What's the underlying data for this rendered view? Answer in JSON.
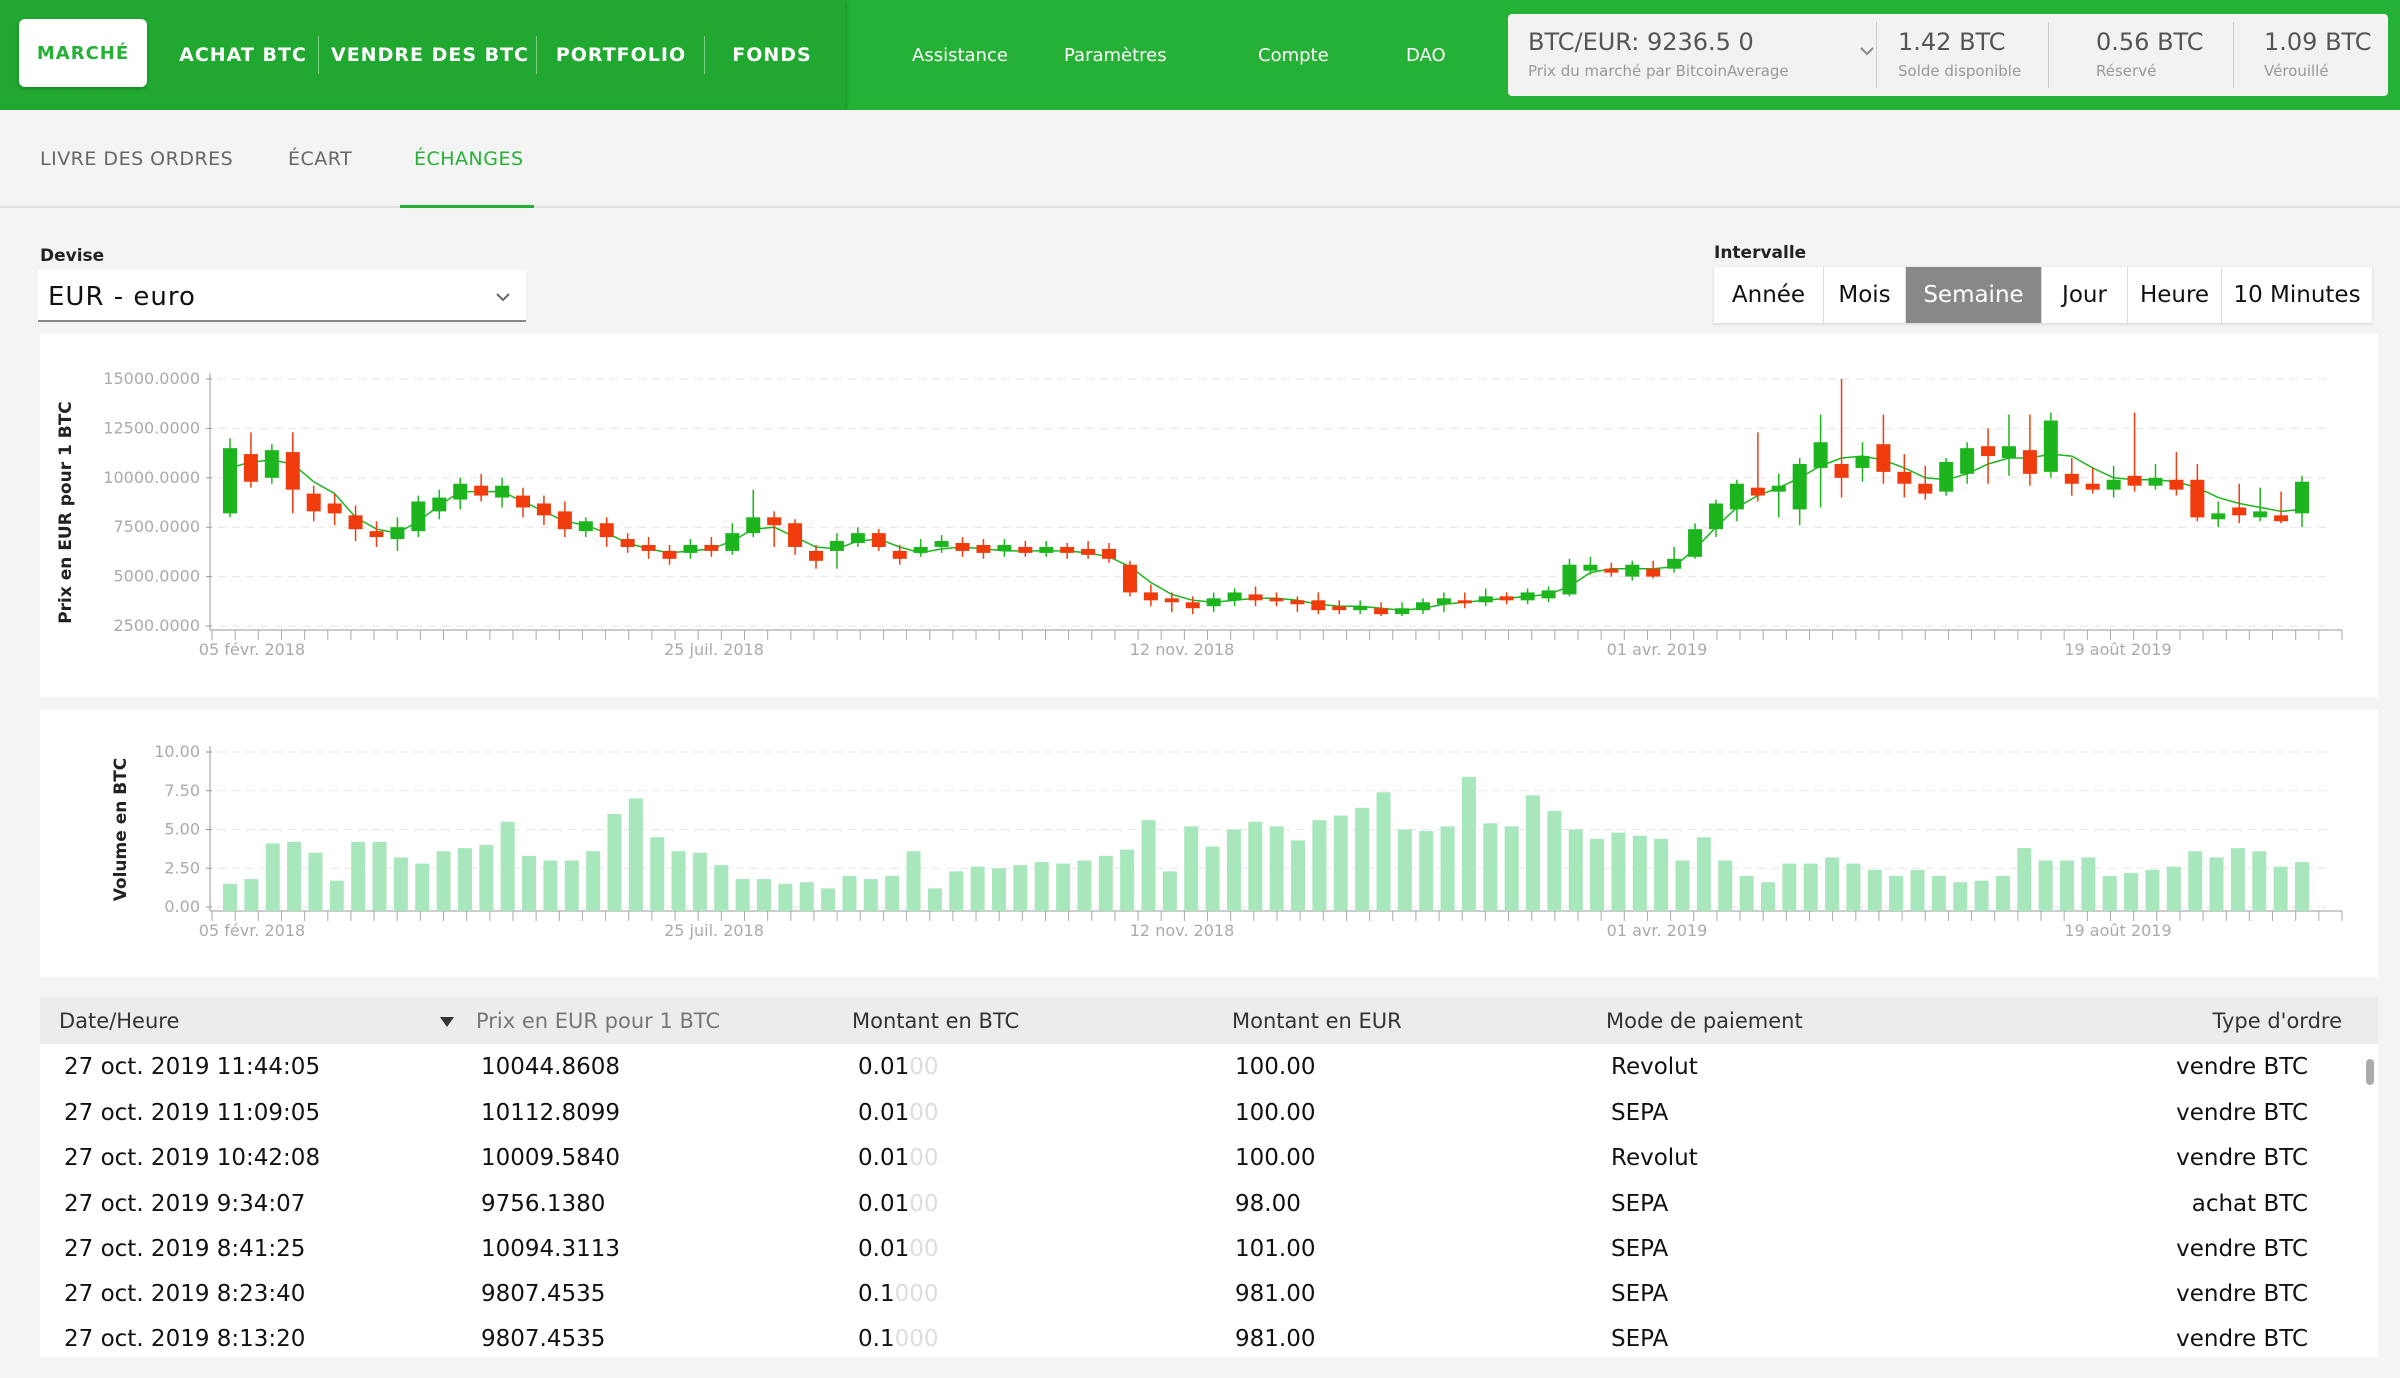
{
  "nav": {
    "items": [
      {
        "label": "MARCHÉ",
        "name": "nav-marche",
        "x": 19,
        "w": 128,
        "active": true
      },
      {
        "label": "ACHAT BTC",
        "name": "nav-achat-btc",
        "x": 170,
        "w": 146
      },
      {
        "label": "VENDRE DES BTC",
        "name": "nav-vendre-btc",
        "x": 328,
        "w": 204
      },
      {
        "label": "PORTFOLIO",
        "name": "nav-portfolio",
        "x": 548,
        "w": 146
      },
      {
        "label": "FONDS",
        "name": "nav-fonds",
        "x": 712,
        "w": 120
      }
    ],
    "links": [
      {
        "label": "Assistance",
        "name": "nav-assistance"
      },
      {
        "label": "Paramètres",
        "name": "nav-parametres"
      },
      {
        "label": "Compte",
        "name": "nav-compte"
      },
      {
        "label": "DAO",
        "name": "nav-dao"
      }
    ]
  },
  "market": {
    "price_label": "BTC/EUR: 9236.5 0",
    "price_source": "Prix du marché par BitcoinAverage",
    "balances": [
      {
        "value": "1.42 BTC",
        "label": "Solde disponible"
      },
      {
        "value": "0.56 BTC",
        "label": "Réservé"
      },
      {
        "value": "1.09 BTC",
        "label": "Vérouillé"
      }
    ]
  },
  "tabs": [
    {
      "label": "LIVRE DES ORDRES",
      "name": "tab-livre-des-ordres"
    },
    {
      "label": "ÉCART",
      "name": "tab-ecart"
    },
    {
      "label": "ÉCHANGES",
      "name": "tab-echanges",
      "active": true
    }
  ],
  "currency": {
    "label": "Devise",
    "value": "EUR - euro"
  },
  "interval": {
    "label": "Intervalle",
    "options": [
      "Année",
      "Mois",
      "Semaine",
      "Jour",
      "Heure",
      "10 Minutes"
    ],
    "selected": "Semaine"
  },
  "colors": {
    "up": "#1db51d",
    "down": "#f03c0c",
    "volume": "#a8e6bc",
    "accent": "#25b135"
  },
  "chart_data": [
    {
      "type": "candlestick",
      "ylabel": "Prix en EUR pour 1 BTC",
      "ylim": [
        2500,
        15000
      ],
      "yticks": [
        "15000.0000",
        "12500.0000",
        "10000.0000",
        "7500.0000",
        "5000.0000",
        "2500.0000"
      ],
      "xticks": [
        "05 févr. 2018",
        "25 juil. 2018",
        "12 nov. 2018",
        "01 avr. 2019",
        "19 août 2019"
      ],
      "candles": [
        [
          8200,
          11500,
          12000,
          8000
        ],
        [
          11200,
          9800,
          12300,
          9500
        ],
        [
          10000,
          11400,
          11700,
          9700
        ],
        [
          11300,
          9400,
          12300,
          8200
        ],
        [
          9200,
          8300,
          9600,
          7800
        ],
        [
          8700,
          8200,
          9200,
          7600
        ],
        [
          8100,
          7400,
          8600,
          6800
        ],
        [
          7300,
          7000,
          7800,
          6500
        ],
        [
          6900,
          7500,
          8000,
          6300
        ],
        [
          7300,
          8800,
          9100,
          7000
        ],
        [
          8300,
          9000,
          9400,
          7900
        ],
        [
          8900,
          9700,
          10000,
          8400
        ],
        [
          9600,
          9100,
          10200,
          8800
        ],
        [
          9000,
          9600,
          10000,
          8500
        ],
        [
          9100,
          8500,
          9500,
          8000
        ],
        [
          8700,
          8100,
          9100,
          7600
        ],
        [
          8300,
          7400,
          8800,
          7000
        ],
        [
          7300,
          7800,
          8000,
          7000
        ],
        [
          7700,
          7000,
          8000,
          6500
        ],
        [
          6900,
          6500,
          7200,
          6200
        ],
        [
          6600,
          6300,
          7000,
          5900
        ],
        [
          6300,
          5900,
          6600,
          5600
        ],
        [
          6200,
          6600,
          6900,
          5900
        ],
        [
          6600,
          6300,
          7000,
          6000
        ],
        [
          6300,
          7200,
          7700,
          6100
        ],
        [
          7200,
          8000,
          9400,
          7000
        ],
        [
          8000,
          7600,
          8300,
          6500
        ],
        [
          7700,
          6500,
          7900,
          6100
        ],
        [
          6300,
          5800,
          6600,
          5400
        ],
        [
          6300,
          6800,
          7200,
          5400
        ],
        [
          6700,
          7200,
          7500,
          6500
        ],
        [
          7200,
          6500,
          7400,
          6300
        ],
        [
          6300,
          5900,
          6600,
          5600
        ],
        [
          6200,
          6500,
          6900,
          6000
        ],
        [
          6500,
          6800,
          7100,
          6200
        ],
        [
          6700,
          6300,
          7000,
          6000
        ],
        [
          6600,
          6200,
          6900,
          5900
        ],
        [
          6300,
          6600,
          6900,
          6000
        ],
        [
          6500,
          6200,
          6800,
          6000
        ],
        [
          6200,
          6500,
          6800,
          6000
        ],
        [
          6500,
          6200,
          6700,
          5900
        ],
        [
          6400,
          6100,
          6800,
          5900
        ],
        [
          6400,
          5900,
          6700,
          5700
        ],
        [
          5600,
          4200,
          5800,
          4000
        ],
        [
          4200,
          3800,
          4600,
          3500
        ],
        [
          3900,
          3700,
          4200,
          3200
        ],
        [
          3700,
          3400,
          4000,
          3100
        ],
        [
          3500,
          3900,
          4200,
          3200
        ],
        [
          3800,
          4200,
          4400,
          3500
        ],
        [
          4100,
          3800,
          4500,
          3500
        ],
        [
          3900,
          3800,
          4200,
          3500
        ],
        [
          3800,
          3600,
          4000,
          3200
        ],
        [
          3800,
          3300,
          4200,
          3100
        ],
        [
          3500,
          3300,
          3800,
          3100
        ],
        [
          3300,
          3500,
          3800,
          3100
        ],
        [
          3400,
          3100,
          3700,
          3000
        ],
        [
          3100,
          3400,
          3700,
          3000
        ],
        [
          3300,
          3700,
          3900,
          3100
        ],
        [
          3600,
          3900,
          4200,
          3200
        ],
        [
          3800,
          3700,
          4200,
          3400
        ],
        [
          3700,
          4000,
          4400,
          3500
        ],
        [
          4000,
          3800,
          4200,
          3600
        ],
        [
          3800,
          4200,
          4400,
          3600
        ],
        [
          3900,
          4300,
          4500,
          3700
        ],
        [
          4100,
          5600,
          5900,
          4000
        ],
        [
          5300,
          5600,
          6000,
          5100
        ],
        [
          5400,
          5200,
          5700,
          5000
        ],
        [
          5000,
          5600,
          5800,
          4800
        ],
        [
          5400,
          5000,
          5800,
          4900
        ],
        [
          5400,
          5900,
          6500,
          5200
        ],
        [
          6000,
          7400,
          7700,
          5900
        ],
        [
          7400,
          8700,
          8900,
          7000
        ],
        [
          8400,
          9700,
          9900,
          7800
        ],
        [
          9500,
          9100,
          12300,
          8800
        ],
        [
          9300,
          9600,
          10200,
          8000
        ],
        [
          8400,
          10700,
          11000,
          7600
        ],
        [
          10500,
          11800,
          13200,
          8500
        ],
        [
          10700,
          10000,
          15000,
          9000
        ],
        [
          10500,
          11100,
          11800,
          9800
        ],
        [
          11700,
          10300,
          13200,
          9700
        ],
        [
          10300,
          9700,
          11200,
          9000
        ],
        [
          9700,
          9200,
          10600,
          8900
        ],
        [
          9300,
          10800,
          11000,
          9100
        ],
        [
          10200,
          11500,
          11800,
          9700
        ],
        [
          11600,
          11100,
          12500,
          9700
        ],
        [
          11000,
          11600,
          13200,
          10100
        ],
        [
          11400,
          10200,
          13200,
          9600
        ],
        [
          10300,
          12900,
          13300,
          10000
        ],
        [
          10200,
          9700,
          11000,
          9100
        ],
        [
          9700,
          9400,
          10500,
          9200
        ],
        [
          9400,
          9900,
          10600,
          9000
        ],
        [
          10100,
          9600,
          13300,
          9300
        ],
        [
          9600,
          10000,
          10700,
          9400
        ],
        [
          9900,
          9400,
          11300,
          9100
        ],
        [
          9900,
          8000,
          10700,
          7800
        ],
        [
          7900,
          8200,
          8800,
          7500
        ],
        [
          8500,
          8100,
          9700,
          7700
        ],
        [
          8000,
          8300,
          9500,
          7800
        ],
        [
          8100,
          7800,
          9300,
          7700
        ],
        [
          8200,
          9800,
          10100,
          7500
        ]
      ],
      "ma": [
        10500,
        10800,
        10900,
        10700,
        9800,
        9200,
        8000,
        7400,
        7200,
        7800,
        8600,
        9300,
        9300,
        9300,
        8800,
        8300,
        7800,
        7600,
        7200,
        6700,
        6400,
        6200,
        6300,
        6400,
        6800,
        7400,
        7500,
        7000,
        6500,
        6400,
        6800,
        6900,
        6500,
        6200,
        6400,
        6500,
        6400,
        6300,
        6300,
        6300,
        6300,
        6200,
        6000,
        5500,
        4700,
        4100,
        3800,
        3700,
        3800,
        3900,
        3900,
        3800,
        3600,
        3500,
        3500,
        3400,
        3300,
        3400,
        3600,
        3700,
        3800,
        3900,
        4000,
        4100,
        4500,
        5200,
        5400,
        5400,
        5400,
        5500,
        6400,
        7500,
        8500,
        9100,
        9500,
        10000,
        10600,
        11000,
        11100,
        10900,
        10500,
        10000,
        9900,
        10200,
        10700,
        11000,
        11000,
        11200,
        11100,
        10500,
        10000,
        9900,
        9900,
        9800,
        9500,
        9000,
        8700,
        8500,
        8300,
        8400
      ]
    },
    {
      "type": "bar",
      "ylabel": "Volume en BTC",
      "ylim": [
        0,
        10
      ],
      "yticks": [
        "10.00",
        "7.50",
        "5.00",
        "2.50",
        "0.00"
      ],
      "xticks": [
        "05 févr. 2018",
        "25 juil. 2018",
        "12 nov. 2018",
        "01 avr. 2019",
        "19 août 2019"
      ],
      "values": [
        1.5,
        1.8,
        4.1,
        4.2,
        3.5,
        1.7,
        4.2,
        4.2,
        3.2,
        2.8,
        3.6,
        3.8,
        4.0,
        5.5,
        3.3,
        3.0,
        3.0,
        3.6,
        6.0,
        7.0,
        4.5,
        3.6,
        3.5,
        2.7,
        1.8,
        1.8,
        1.5,
        1.6,
        1.2,
        2.0,
        1.8,
        2.0,
        3.6,
        1.2,
        2.3,
        2.6,
        2.5,
        2.7,
        2.9,
        2.8,
        3.0,
        3.3,
        3.7,
        5.6,
        2.3,
        5.2,
        3.9,
        5.0,
        5.5,
        5.2,
        4.3,
        5.6,
        5.9,
        6.4,
        7.4,
        5.0,
        4.9,
        5.2,
        8.4,
        5.4,
        5.2,
        7.2,
        6.2,
        5.0,
        4.4,
        4.8,
        4.6,
        4.4,
        3.0,
        4.5,
        3.0,
        2.0,
        1.6,
        2.8,
        2.8,
        3.2,
        2.8,
        2.4,
        2.0,
        2.4,
        2.0,
        1.6,
        1.7,
        2.0,
        3.8,
        3.0,
        3.0,
        3.2,
        2.0,
        2.2,
        2.4,
        2.6,
        3.6,
        3.2,
        3.8,
        3.6,
        2.6,
        2.9
      ]
    }
  ],
  "table": {
    "headers": [
      "Date/Heure",
      "Prix en EUR pour 1 BTC",
      "Montant en BTC",
      "Montant en EUR",
      "Mode de paiement",
      "Type d'ordre"
    ],
    "rows": [
      {
        "date": "27 oct. 2019 11:44:05",
        "price": "10044.8608",
        "btc": "0.01",
        "btc_dim": "00",
        "eur": "100.00",
        "method": "Revolut",
        "type": "vendre BTC"
      },
      {
        "date": "27 oct. 2019 11:09:05",
        "price": "10112.8099",
        "btc": "0.01",
        "btc_dim": "00",
        "eur": "100.00",
        "method": "SEPA",
        "type": "vendre BTC"
      },
      {
        "date": "27 oct. 2019 10:42:08",
        "price": "10009.5840",
        "btc": "0.01",
        "btc_dim": "00",
        "eur": "100.00",
        "method": "Revolut",
        "type": "vendre BTC"
      },
      {
        "date": "27 oct. 2019 9:34:07",
        "price": "9756.1380",
        "btc": "0.01",
        "btc_dim": "00",
        "eur": "98.00",
        "method": "SEPA",
        "type": "achat BTC"
      },
      {
        "date": "27 oct. 2019 8:41:25",
        "price": "10094.3113",
        "btc": "0.01",
        "btc_dim": "00",
        "eur": "101.00",
        "method": "SEPA",
        "type": "vendre BTC"
      },
      {
        "date": "27 oct. 2019 8:23:40",
        "price": "9807.4535",
        "btc": "0.1",
        "btc_dim": "000",
        "eur": "981.00",
        "method": "SEPA",
        "type": "vendre BTC"
      },
      {
        "date": "27 oct. 2019 8:13:20",
        "price": "9807.4535",
        "btc": "0.1",
        "btc_dim": "000",
        "eur": "981.00",
        "method": "SEPA",
        "type": "vendre BTC"
      }
    ]
  }
}
